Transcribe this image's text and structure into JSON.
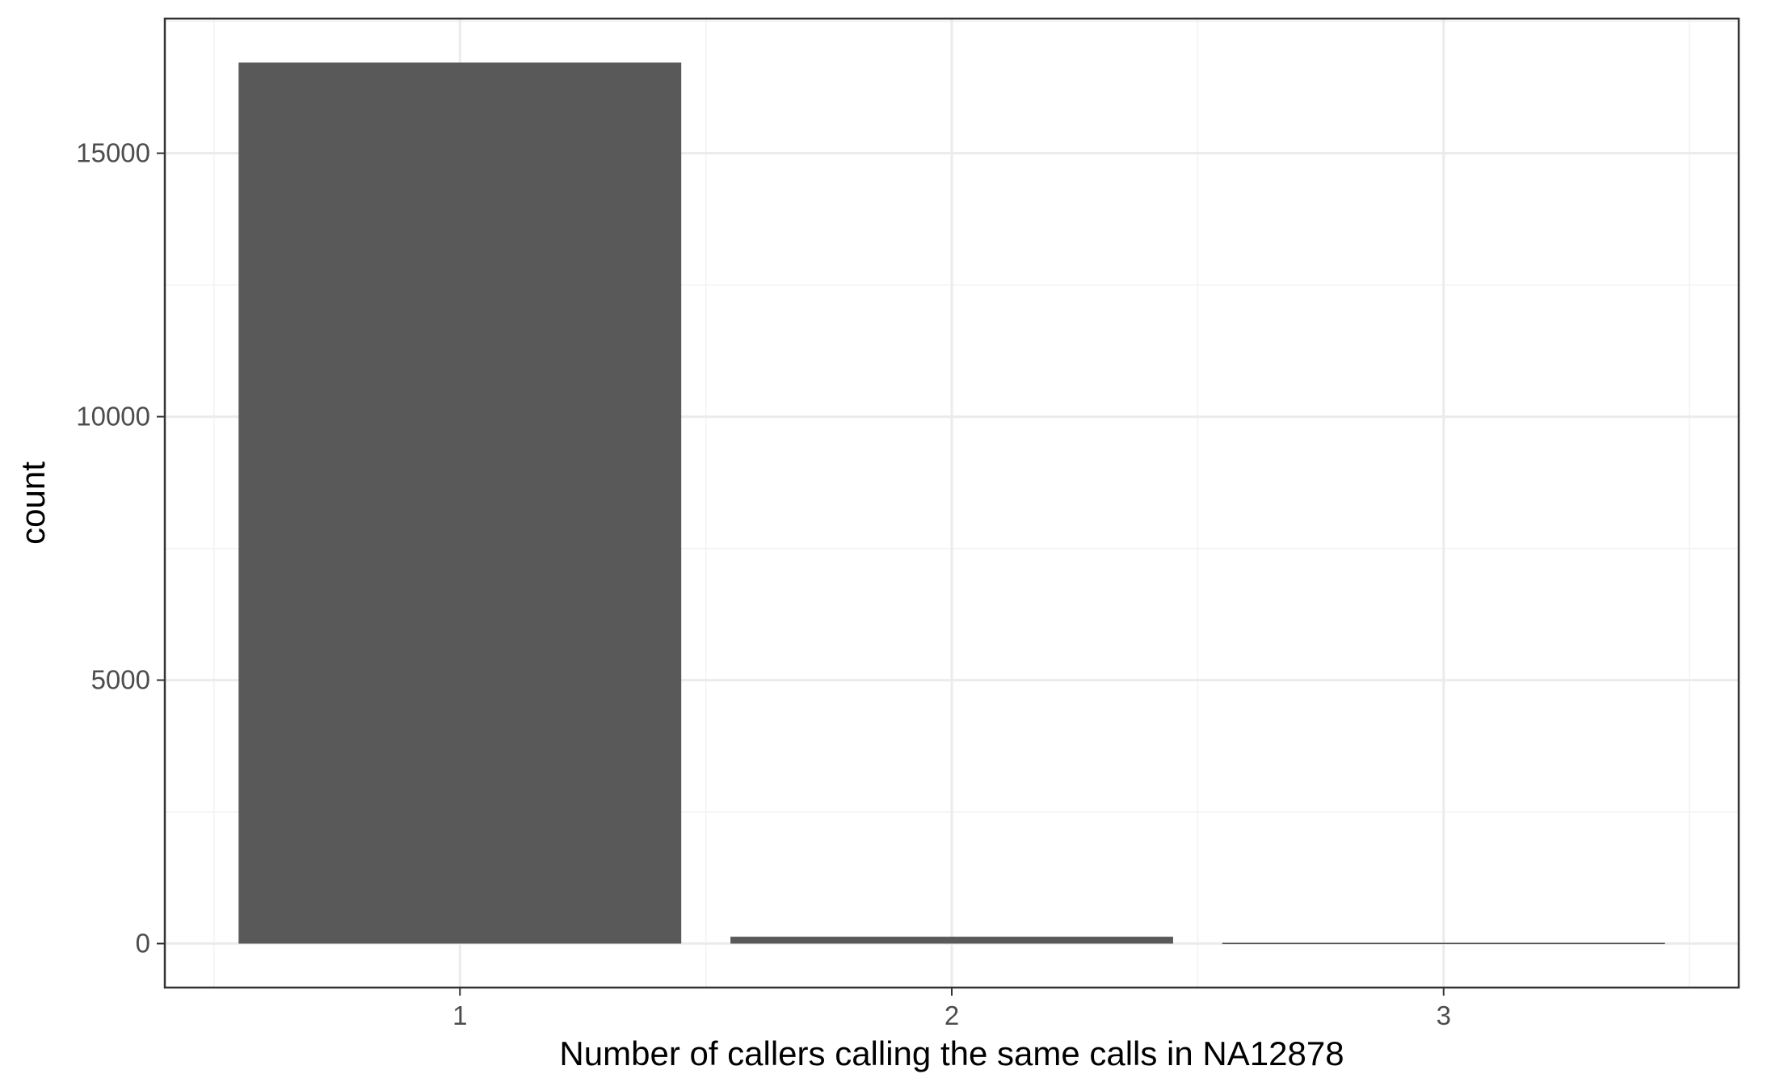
{
  "chart_data": {
    "type": "bar",
    "categories": [
      "1",
      "2",
      "3"
    ],
    "values": [
      16720,
      130,
      15
    ],
    "xlabel": "Number of callers calling the same calls in NA12878",
    "ylabel": "count",
    "ylim": [
      -835,
      17555
    ],
    "yticks": [
      0,
      5000,
      10000,
      15000
    ],
    "yticklabels": [
      "0",
      "5000",
      "10000",
      "15000"
    ],
    "bar_color": "#595959",
    "grid": true,
    "legend": "none"
  }
}
